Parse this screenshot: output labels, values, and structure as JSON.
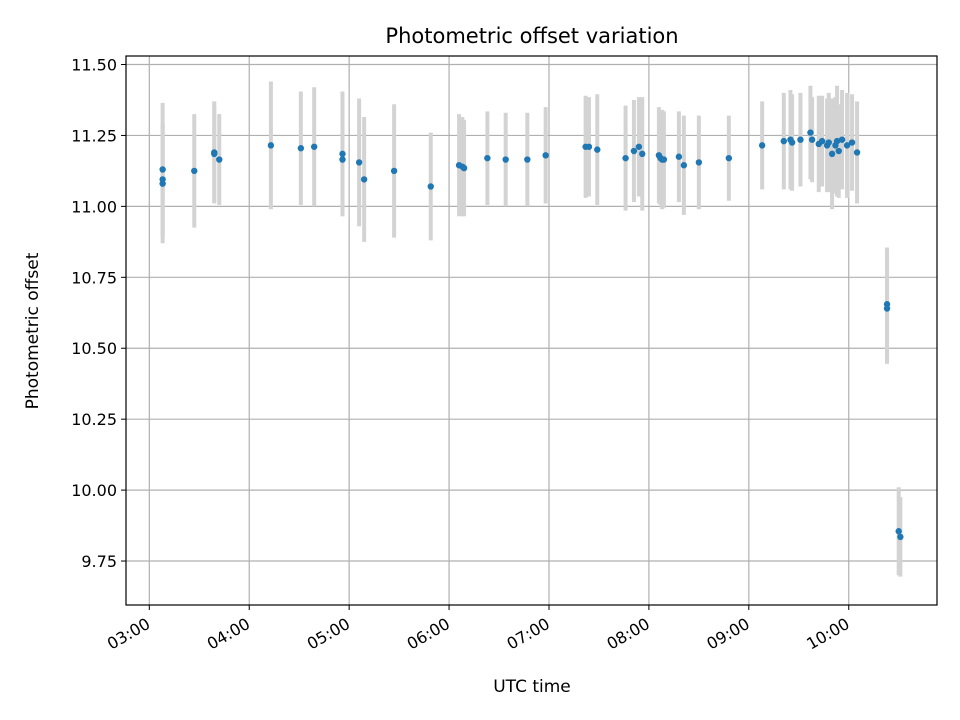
{
  "chart_data": {
    "type": "scatter",
    "title": "Photometric offset variation",
    "xlabel": "UTC time",
    "ylabel": "Photometric offset",
    "grid": true,
    "x_ticks": [
      "03:00",
      "04:00",
      "05:00",
      "06:00",
      "07:00",
      "08:00",
      "09:00",
      "10:00"
    ],
    "y_ticks": [
      "9.75",
      "10.00",
      "10.25",
      "10.50",
      "10.75",
      "11.00",
      "11.25",
      "11.50"
    ],
    "xlim": [
      "02:46",
      "10:53"
    ],
    "ylim": [
      9.595,
      11.53
    ],
    "colors": {
      "points": "#1f77b4",
      "error_bars": "#d3d3d3",
      "grid": "#b0b0b0"
    },
    "series": [
      {
        "x": [
          "03:08",
          "03:08",
          "03:08",
          "03:27",
          "03:39",
          "03:39",
          "03:42",
          "04:13",
          "04:31",
          "04:39",
          "04:56",
          "04:56",
          "05:06",
          "05:09",
          "05:27",
          "05:49",
          "06:06",
          "06:08",
          "06:09",
          "06:23",
          "06:34",
          "06:47",
          "06:58",
          "07:22",
          "07:24",
          "07:29",
          "07:46",
          "07:51",
          "07:54",
          "07:56",
          "08:06",
          "08:07",
          "08:08",
          "08:09",
          "08:18",
          "08:21",
          "08:30",
          "08:48",
          "09:08",
          "09:21",
          "09:25",
          "09:26",
          "09:31",
          "09:37",
          "09:38",
          "09:42",
          "09:44",
          "09:47",
          "09:48",
          "09:50",
          "09:52",
          "09:53",
          "09:54",
          "09:56",
          "09:59",
          "10:02",
          "10:05",
          "10:23",
          "10:23",
          "10:30",
          "10:31"
        ],
        "y": [
          11.08,
          11.095,
          11.13,
          11.125,
          11.19,
          11.185,
          11.165,
          11.215,
          11.205,
          11.21,
          11.185,
          11.165,
          11.155,
          11.095,
          11.125,
          11.07,
          11.145,
          11.14,
          11.135,
          11.17,
          11.165,
          11.165,
          11.18,
          11.21,
          11.21,
          11.2,
          11.17,
          11.195,
          11.21,
          11.185,
          11.18,
          11.17,
          11.165,
          11.165,
          11.175,
          11.145,
          11.155,
          11.17,
          11.215,
          11.23,
          11.235,
          11.225,
          11.235,
          11.26,
          11.235,
          11.22,
          11.23,
          11.215,
          11.225,
          11.185,
          11.215,
          11.23,
          11.195,
          11.235,
          11.215,
          11.225,
          11.19,
          10.655,
          10.64,
          9.855,
          9.835
        ],
        "err": [
          0.21,
          0.19,
          0.235,
          0.2,
          0.18,
          0.17,
          0.16,
          0.225,
          0.2,
          0.21,
          0.22,
          0.2,
          0.225,
          0.22,
          0.235,
          0.19,
          0.18,
          0.175,
          0.17,
          0.165,
          0.165,
          0.165,
          0.17,
          0.18,
          0.175,
          0.195,
          0.185,
          0.18,
          0.175,
          0.2,
          0.17,
          0.165,
          0.175,
          0.17,
          0.16,
          0.175,
          0.165,
          0.15,
          0.155,
          0.17,
          0.175,
          0.17,
          0.165,
          0.165,
          0.15,
          0.17,
          0.16,
          0.165,
          0.175,
          0.195,
          0.17,
          0.195,
          0.165,
          0.175,
          0.185,
          0.17,
          0.18,
          0.2,
          0.195,
          0.155,
          0.14
        ]
      }
    ]
  }
}
